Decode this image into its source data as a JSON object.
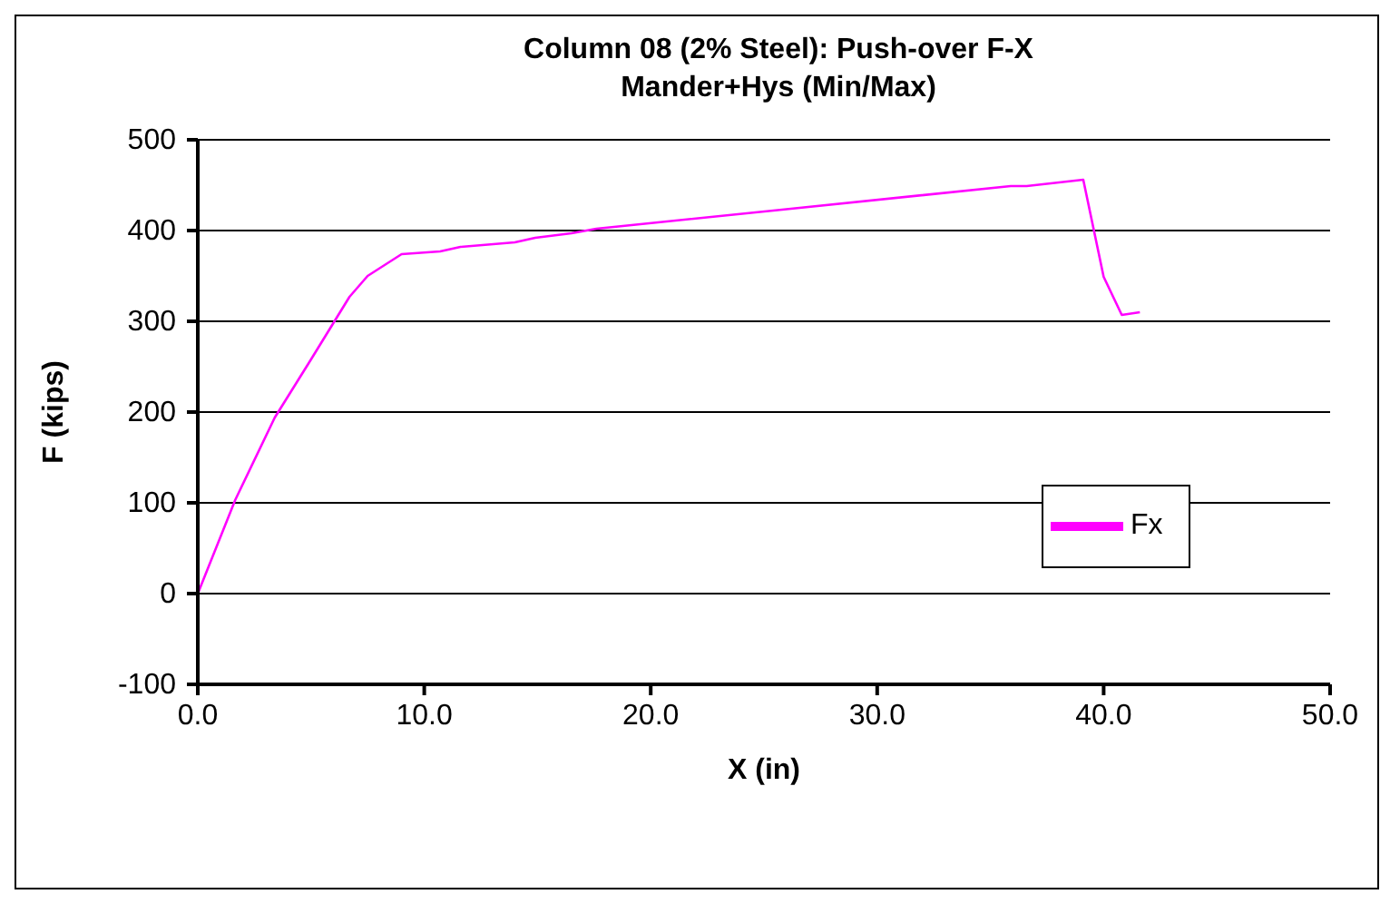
{
  "chart_data": {
    "type": "line",
    "title": "Column 08 (2% Steel): Push-over F-X\nMander+Hys (Min/Max)",
    "xlabel": "X (in)",
    "ylabel": "F (kips)",
    "series": [
      {
        "name": "Fx",
        "color": "#ff00ff",
        "x": [
          0,
          1.65,
          3.4,
          5.0,
          6.7,
          7.5,
          9.0,
          10.7,
          11.6,
          14.0,
          14.9,
          16.5,
          17.6,
          25.8,
          35.9,
          36.6,
          39.1,
          40.0,
          40.8,
          41.6
        ],
        "values": [
          0,
          103,
          194,
          258,
          327,
          350,
          374,
          377,
          382,
          387,
          392,
          397,
          402,
          423,
          449,
          449,
          456,
          349,
          307,
          310
        ]
      }
    ],
    "xlim": [
      0,
      50
    ],
    "xticks": [
      {
        "value": 0,
        "label": "0.0"
      },
      {
        "value": 10,
        "label": "10.0"
      },
      {
        "value": 20,
        "label": "20.0"
      },
      {
        "value": 30,
        "label": "30.0"
      },
      {
        "value": 40,
        "label": "40.0"
      },
      {
        "value": 50,
        "label": "50.0"
      }
    ],
    "ylim": [
      -100,
      500
    ],
    "yticks": [
      -100,
      0,
      100,
      200,
      300,
      400,
      500
    ],
    "grid": "y",
    "legend": "right",
    "marker": "none",
    "line_style": "solid"
  }
}
